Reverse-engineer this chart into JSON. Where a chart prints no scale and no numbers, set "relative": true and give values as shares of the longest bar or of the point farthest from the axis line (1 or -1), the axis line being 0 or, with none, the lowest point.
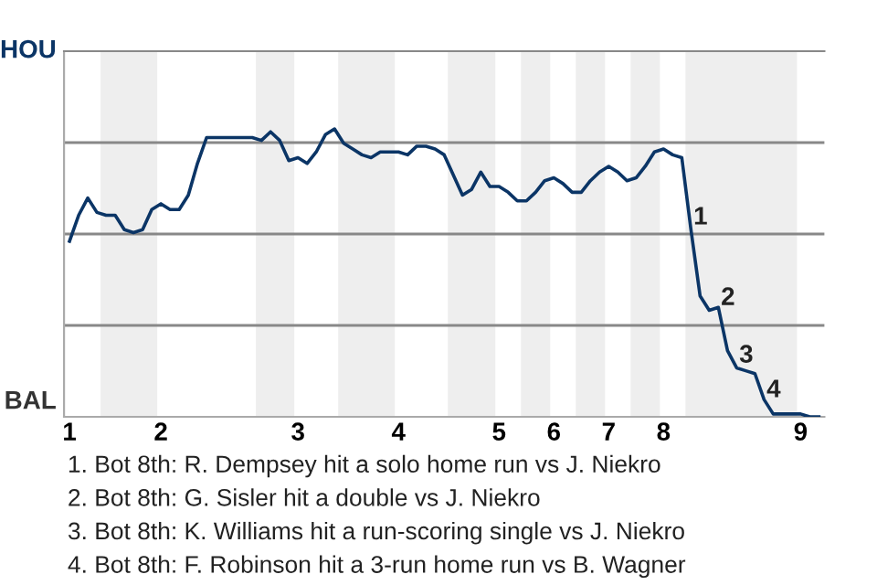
{
  "chart_data": {
    "type": "line",
    "relative": true,
    "categories": [
      "1",
      null,
      null,
      null,
      null,
      null,
      null,
      null,
      null,
      null,
      "2",
      null,
      null,
      null,
      null,
      null,
      null,
      null,
      null,
      null,
      null,
      null,
      null,
      null,
      null,
      "3",
      null,
      null,
      null,
      null,
      null,
      null,
      null,
      null,
      null,
      null,
      "4",
      null,
      null,
      null,
      null,
      null,
      null,
      null,
      null,
      null,
      null,
      "5",
      null,
      null,
      null,
      null,
      null,
      "6",
      null,
      null,
      null,
      null,
      null,
      "7",
      null,
      null,
      null,
      null,
      null,
      "8",
      null,
      null,
      null,
      null,
      null,
      null,
      null,
      null,
      null,
      null,
      null,
      null,
      null,
      null,
      "9",
      null,
      null
    ],
    "series": [
      {
        "color": "#0b3566",
        "values": [
          0.61,
          0.7,
          0.76,
          0.71,
          0.7,
          0.7,
          0.65,
          0.64,
          0.65,
          0.72,
          0.74,
          0.72,
          0.72,
          0.77,
          0.88,
          0.97,
          0.97,
          0.97,
          0.97,
          0.97,
          0.97,
          0.96,
          0.99,
          0.96,
          0.89,
          0.9,
          0.88,
          0.92,
          0.98,
          1.0,
          0.95,
          0.93,
          0.91,
          0.9,
          0.92,
          0.92,
          0.92,
          0.91,
          0.94,
          0.94,
          0.93,
          0.91,
          0.84,
          0.77,
          0.79,
          0.85,
          0.8,
          0.8,
          0.78,
          0.75,
          0.75,
          0.78,
          0.82,
          0.83,
          0.81,
          0.78,
          0.78,
          0.82,
          0.85,
          0.87,
          0.85,
          0.82,
          0.83,
          0.87,
          0.92,
          0.93,
          0.91,
          0.9,
          0.65,
          0.42,
          0.37,
          0.38,
          0.23,
          0.17,
          0.16,
          0.15,
          0.06,
          0.01,
          0.01,
          0.01,
          0.01,
          0.0,
          0.0
        ]
      }
    ],
    "grid": "y",
    "annotations": [
      "HOU",
      "BAL",
      {
        "text": "1",
        "y": 0.65
      },
      {
        "text": "2",
        "y": 0.37
      },
      {
        "text": "3",
        "y": 0.17
      },
      {
        "text": "4",
        "y": 0.05
      },
      "1. Bot 8th: R. Dempsey hit a solo home run vs J. Niekro",
      "2. Bot 8th: G. Sisler hit a double vs J. Niekro",
      "3. Bot 8th: K. Williams hit a run-scoring single vs J. Niekro",
      "4. Bot 8th: F. Robinson hit a 3-run home run vs B. Wagner"
    ]
  }
}
